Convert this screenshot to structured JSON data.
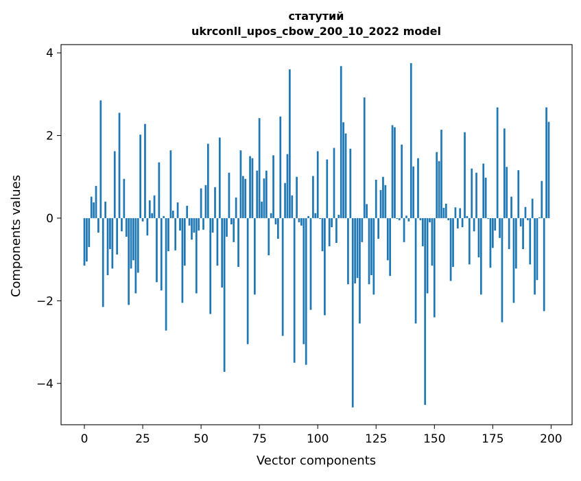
{
  "chart_data": {
    "type": "bar",
    "title_line1": "статутий",
    "title_line2": "ukrconll_upos_cbow_200_10_2022 model",
    "xlabel": "Vector components",
    "ylabel": "Components values",
    "xlim": [
      -10,
      209
    ],
    "ylim": [
      -5.0,
      4.2
    ],
    "xticks": [
      0,
      25,
      50,
      75,
      100,
      125,
      150,
      175,
      200
    ],
    "xtick_labels": [
      "0",
      "25",
      "50",
      "75",
      "100",
      "125",
      "150",
      "175",
      "200"
    ],
    "yticks": [
      -4,
      -2,
      0,
      2,
      4
    ],
    "ytick_labels": [
      "−4",
      "−2",
      "0",
      "2",
      "4"
    ],
    "bar_color": "#1f77b4",
    "grid": false,
    "x": [
      0,
      1,
      2,
      3,
      4,
      5,
      6,
      7,
      8,
      9,
      10,
      11,
      12,
      13,
      14,
      15,
      16,
      17,
      18,
      19,
      20,
      21,
      22,
      23,
      24,
      25,
      26,
      27,
      28,
      29,
      30,
      31,
      32,
      33,
      34,
      35,
      36,
      37,
      38,
      39,
      40,
      41,
      42,
      43,
      44,
      45,
      46,
      47,
      48,
      49,
      50,
      51,
      52,
      53,
      54,
      55,
      56,
      57,
      58,
      59,
      60,
      61,
      62,
      63,
      64,
      65,
      66,
      67,
      68,
      69,
      70,
      71,
      72,
      73,
      74,
      75,
      76,
      77,
      78,
      79,
      80,
      81,
      82,
      83,
      84,
      85,
      86,
      87,
      88,
      89,
      90,
      91,
      92,
      93,
      94,
      95,
      96,
      97,
      98,
      99,
      100,
      101,
      102,
      103,
      104,
      105,
      106,
      107,
      108,
      109,
      110,
      111,
      112,
      113,
      114,
      115,
      116,
      117,
      118,
      119,
      120,
      121,
      122,
      123,
      124,
      125,
      126,
      127,
      128,
      129,
      130,
      131,
      132,
      133,
      134,
      135,
      136,
      137,
      138,
      139,
      140,
      141,
      142,
      143,
      144,
      145,
      146,
      147,
      148,
      149,
      150,
      151,
      152,
      153,
      154,
      155,
      156,
      157,
      158,
      159,
      160,
      161,
      162,
      163,
      164,
      165,
      166,
      167,
      168,
      169,
      170,
      171,
      172,
      173,
      174,
      175,
      176,
      177,
      178,
      179,
      180,
      181,
      182,
      183,
      184,
      185,
      186,
      187,
      188,
      189,
      190,
      191,
      192,
      193,
      194,
      195,
      196,
      197,
      198,
      199
    ],
    "values": [
      -1.15,
      -1.05,
      -0.7,
      0.52,
      0.38,
      0.78,
      -0.35,
      2.85,
      -2.15,
      0.4,
      -1.38,
      -0.75,
      -1.22,
      1.62,
      -0.88,
      2.55,
      -0.32,
      0.95,
      -0.45,
      -2.1,
      -1.22,
      -1.02,
      -1.82,
      -1.32,
      2.02,
      -0.08,
      2.28,
      -0.42,
      0.43,
      0.12,
      0.55,
      -1.55,
      1.35,
      -1.75,
      0.05,
      -2.72,
      -0.8,
      1.64,
      0.18,
      -0.78,
      0.38,
      -0.3,
      -2.05,
      -1.15,
      0.3,
      -0.18,
      -0.52,
      -0.35,
      -1.82,
      -0.3,
      0.72,
      -0.28,
      0.8,
      1.8,
      -2.32,
      -0.35,
      0.75,
      -1.15,
      1.95,
      -1.68,
      -3.72,
      -0.45,
      1.1,
      -0.15,
      -0.58,
      0.5,
      -1.18,
      1.64,
      1.02,
      0.95,
      -3.05,
      1.5,
      1.45,
      -1.85,
      1.15,
      2.42,
      0.4,
      0.96,
      1.15,
      -0.9,
      0.12,
      1.52,
      -0.15,
      -0.5,
      2.46,
      -2.85,
      0.85,
      1.55,
      3.6,
      0.55,
      -3.5,
      1.0,
      -0.1,
      -0.18,
      -3.05,
      -3.55,
      0.05,
      -2.22,
      1.02,
      0.12,
      1.62,
      -0.02,
      -0.8,
      -2.35,
      1.42,
      -0.68,
      -0.22,
      1.7,
      -0.6,
      0.08,
      3.68,
      2.32,
      2.05,
      -1.6,
      1.68,
      -4.58,
      -1.58,
      -1.45,
      -2.55,
      -0.58,
      2.92,
      0.34,
      -1.6,
      -1.38,
      -1.85,
      0.93,
      -0.5,
      0.68,
      1.0,
      0.8,
      -1.02,
      -1.4,
      2.25,
      2.2,
      -0.02,
      -0.05,
      1.78,
      -0.58,
      0.06,
      -0.08,
      3.75,
      1.25,
      -2.55,
      1.45,
      -0.05,
      -0.68,
      -4.52,
      -1.82,
      -0.1,
      -1.15,
      -2.4,
      1.6,
      1.38,
      2.14,
      0.25,
      0.35,
      -0.05,
      -1.52,
      -1.18,
      0.26,
      -0.25,
      0.24,
      -0.22,
      2.08,
      0.05,
      -1.12,
      1.2,
      -0.32,
      1.1,
      -0.95,
      -1.85,
      1.32,
      0.98,
      -0.02,
      -1.2,
      -0.72,
      -0.3,
      2.68,
      -0.48,
      -2.52,
      2.17,
      1.24,
      -0.75,
      0.52,
      -2.05,
      -1.22,
      1.16,
      -0.2,
      -0.75,
      0.27,
      -0.05,
      -1.12,
      0.47,
      -1.85,
      -1.5,
      0.02,
      0.9,
      -2.25,
      2.68,
      2.33
    ]
  }
}
